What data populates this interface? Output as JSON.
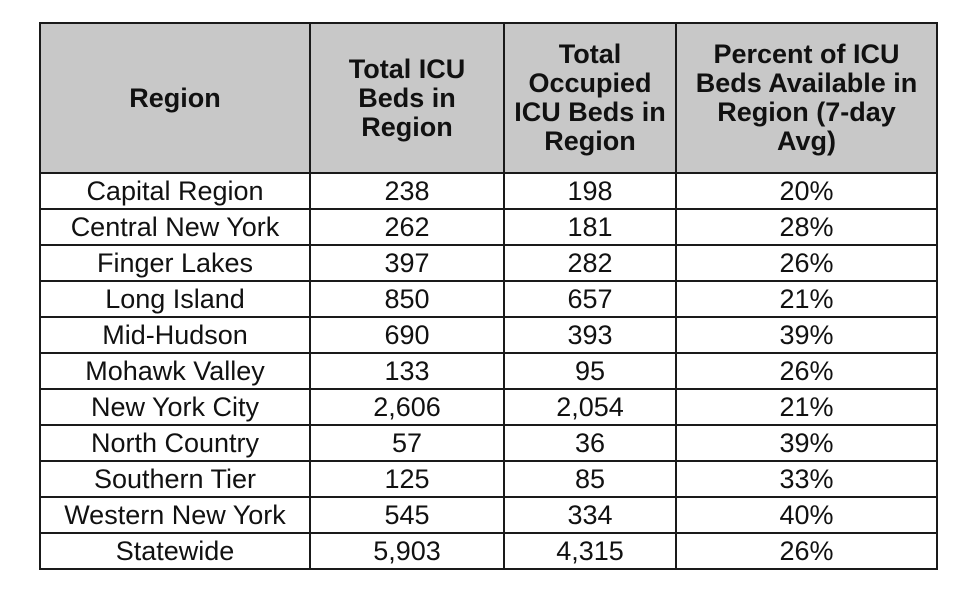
{
  "table": {
    "headers": [
      [
        "Region"
      ],
      [
        "Total ICU",
        "Beds in",
        "Region"
      ],
      [
        "Total",
        "Occupied",
        "ICU Beds in",
        "Region"
      ],
      [
        "Percent of ICU",
        "Beds Available in",
        "Region (7-day",
        "Avg)"
      ]
    ],
    "rows": [
      [
        "Capital Region",
        "238",
        "198",
        "20%"
      ],
      [
        "Central New York",
        "262",
        "181",
        "28%"
      ],
      [
        "Finger Lakes",
        "397",
        "282",
        "26%"
      ],
      [
        "Long Island",
        "850",
        "657",
        "21%"
      ],
      [
        "Mid-Hudson",
        "690",
        "393",
        "39%"
      ],
      [
        "Mohawk Valley",
        "133",
        "95",
        "26%"
      ],
      [
        "New York City",
        "2,606",
        "2,054",
        "21%"
      ],
      [
        "North Country",
        "57",
        "36",
        "39%"
      ],
      [
        "Southern Tier",
        "125",
        "85",
        "33%"
      ],
      [
        "Western New York",
        "545",
        "334",
        "40%"
      ],
      [
        "Statewide",
        "5,903",
        "4,315",
        "26%"
      ]
    ]
  },
  "colors": {
    "header_background": "#c8c8c8",
    "border": "#1a1a1a",
    "text": "#111111"
  }
}
